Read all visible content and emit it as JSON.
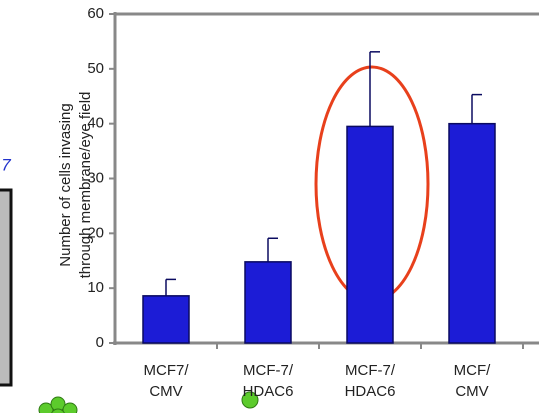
{
  "chart_data": {
    "type": "bar",
    "y_label": [
      "Number of cells invasing",
      "through membrane/eye field"
    ],
    "categories": [
      [
        "MCF7/",
        "CMV"
      ],
      [
        "MCF-7/",
        "HDAC6"
      ],
      [
        "MCF-7/",
        "HDAC6"
      ],
      [
        "MCF/",
        "CMV"
      ]
    ],
    "values": [
      8.6,
      14.8,
      39.5,
      40
    ],
    "errors": [
      3.0,
      4.3,
      13.6,
      5.3
    ],
    "color": "#1c1cd6",
    "ylim": [
      0,
      60
    ],
    "yticks": [
      0,
      10,
      20,
      30,
      40,
      50,
      60
    ],
    "left_panel_label": "7"
  }
}
